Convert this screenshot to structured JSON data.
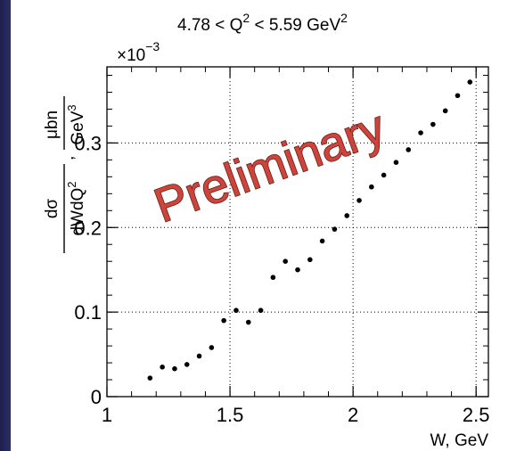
{
  "chart_data": {
    "type": "scatter",
    "title_parts": {
      "lhs": "4.78 < Q",
      "sup1": "2",
      "mid": " < 5.59 GeV",
      "sup2": "2"
    },
    "multiplier": {
      "base": "×10",
      "exponent": "−3"
    },
    "xlabel": "W, GeV",
    "ylabel": {
      "numerator": "dσ",
      "denominator": "dWdQ",
      "denominator_sup": "2",
      "comma": ",",
      "unit_numerator": "μbn",
      "unit_denominator": "GeV",
      "unit_denominator_sup": "3"
    },
    "xlim": [
      1.0,
      2.55
    ],
    "ylim": [
      0.0,
      0.39
    ],
    "x_ticks": [
      {
        "value": 1.0,
        "label": "1"
      },
      {
        "value": 1.5,
        "label": "1.5"
      },
      {
        "value": 2.0,
        "label": "2"
      },
      {
        "value": 2.5,
        "label": "2.5"
      }
    ],
    "y_ticks": [
      {
        "value": 0.0,
        "label": "0"
      },
      {
        "value": 0.1,
        "label": "0.1"
      },
      {
        "value": 0.2,
        "label": "0.2"
      },
      {
        "value": 0.3,
        "label": "0.3"
      }
    ],
    "grid": "dotted at major ticks",
    "watermark": "Preliminary",
    "watermark_color": "#cc3a30",
    "marker_color": "#000000",
    "x": [
      1.175,
      1.225,
      1.275,
      1.325,
      1.375,
      1.425,
      1.475,
      1.525,
      1.575,
      1.625,
      1.675,
      1.725,
      1.775,
      1.825,
      1.875,
      1.925,
      1.975,
      2.025,
      2.075,
      2.125,
      2.175,
      2.225,
      2.275,
      2.325,
      2.375,
      2.425,
      2.475
    ],
    "y": [
      0.022,
      0.035,
      0.033,
      0.038,
      0.048,
      0.058,
      0.09,
      0.102,
      0.088,
      0.102,
      0.141,
      0.16,
      0.15,
      0.162,
      0.184,
      0.198,
      0.214,
      0.232,
      0.248,
      0.262,
      0.277,
      0.292,
      0.312,
      0.322,
      0.338,
      0.356,
      0.372
    ]
  }
}
